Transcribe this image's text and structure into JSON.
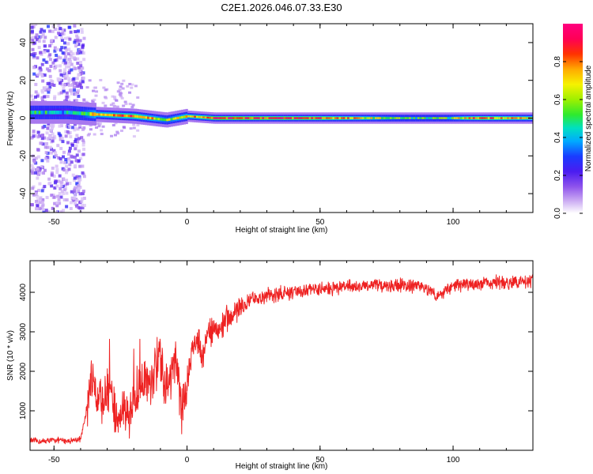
{
  "title": "C2E1.2026.046.07.33.E30",
  "chart_data": [
    {
      "type": "heatmap",
      "title": "C2E1.2026.046.07.33.E30",
      "xlabel": "Height of straight line (km)",
      "ylabel": "Frequency (Hz)",
      "xlim": [
        -59,
        130
      ],
      "ylim": [
        -50,
        50
      ],
      "xticks": [
        -50,
        0,
        50,
        100
      ],
      "yticks": [
        -40,
        -20,
        0,
        20,
        40
      ],
      "colorbar": {
        "label": "Normalized spectral amplitude",
        "range": [
          0,
          1
        ],
        "ticks": [
          0.0,
          0.2,
          0.4,
          0.6,
          0.8
        ],
        "tick_labels": [
          "0.0",
          "0.2",
          "0.4",
          "0.6",
          "0.8"
        ],
        "colormap": [
          "#ffffff",
          "#c8a6f2",
          "#8f54ec",
          "#4b1cf0",
          "#1a3cff",
          "#00aaff",
          "#00e0c0",
          "#2eea2e",
          "#9ef000",
          "#f6f200",
          "#ffaa00",
          "#ff3300",
          "#ff0055",
          "#ff007f"
        ]
      },
      "ridge": {
        "frequency_hz": 0,
        "description_points": [
          {
            "x": -59,
            "y": 3,
            "amp": 0.5
          },
          {
            "x": -45,
            "y": 3,
            "amp": 0.4
          },
          {
            "x": -35,
            "y": 2,
            "amp": 0.7
          },
          {
            "x": -20,
            "y": 1,
            "amp": 0.85
          },
          {
            "x": -8,
            "y": -1,
            "amp": 0.6
          },
          {
            "x": 0,
            "y": 1,
            "amp": 0.75
          },
          {
            "x": 10,
            "y": 0,
            "amp": 0.9
          },
          {
            "x": 50,
            "y": 0,
            "amp": 0.85
          },
          {
            "x": 80,
            "y": 0,
            "amp": 0.55
          },
          {
            "x": 95,
            "y": 0,
            "amp": 0.5
          },
          {
            "x": 110,
            "y": 0,
            "amp": 0.85
          },
          {
            "x": 130,
            "y": 0,
            "amp": 0.7
          }
        ]
      }
    },
    {
      "type": "line",
      "xlabel": "Height of straight line (km)",
      "ylabel": "SNR (10 * v/v)",
      "xlim": [
        -59,
        130
      ],
      "ylim": [
        0,
        4800
      ],
      "xticks": [
        -50,
        0,
        50,
        100
      ],
      "yticks": [
        1000,
        2000,
        3000,
        4000
      ],
      "series": [
        {
          "name": "SNR",
          "color": "#ee2222",
          "x": [
            -59,
            -55,
            -50,
            -45,
            -40,
            -38,
            -36,
            -34,
            -32,
            -30,
            -28,
            -26,
            -24,
            -22,
            -20,
            -18,
            -16,
            -14,
            -12,
            -10,
            -8,
            -6,
            -4,
            -2,
            0,
            2,
            4,
            6,
            8,
            10,
            12,
            14,
            16,
            18,
            20,
            25,
            30,
            35,
            40,
            45,
            50,
            55,
            60,
            65,
            70,
            75,
            80,
            85,
            90,
            93,
            95,
            97,
            100,
            105,
            110,
            115,
            120,
            125,
            130
          ],
          "y": [
            250,
            220,
            260,
            240,
            280,
            900,
            1800,
            1400,
            1200,
            1500,
            1100,
            800,
            1300,
            700,
            1200,
            1600,
            1900,
            1700,
            2100,
            2300,
            1500,
            1800,
            2200,
            1000,
            1700,
            2600,
            2800,
            2400,
            2900,
            3100,
            3000,
            3300,
            3400,
            3500,
            3600,
            3800,
            3900,
            3950,
            4000,
            4050,
            4100,
            4100,
            4150,
            4150,
            4200,
            4150,
            4200,
            4150,
            4100,
            4000,
            3900,
            4000,
            4150,
            4200,
            4200,
            4250,
            4250,
            4250,
            4300
          ]
        }
      ]
    }
  ]
}
